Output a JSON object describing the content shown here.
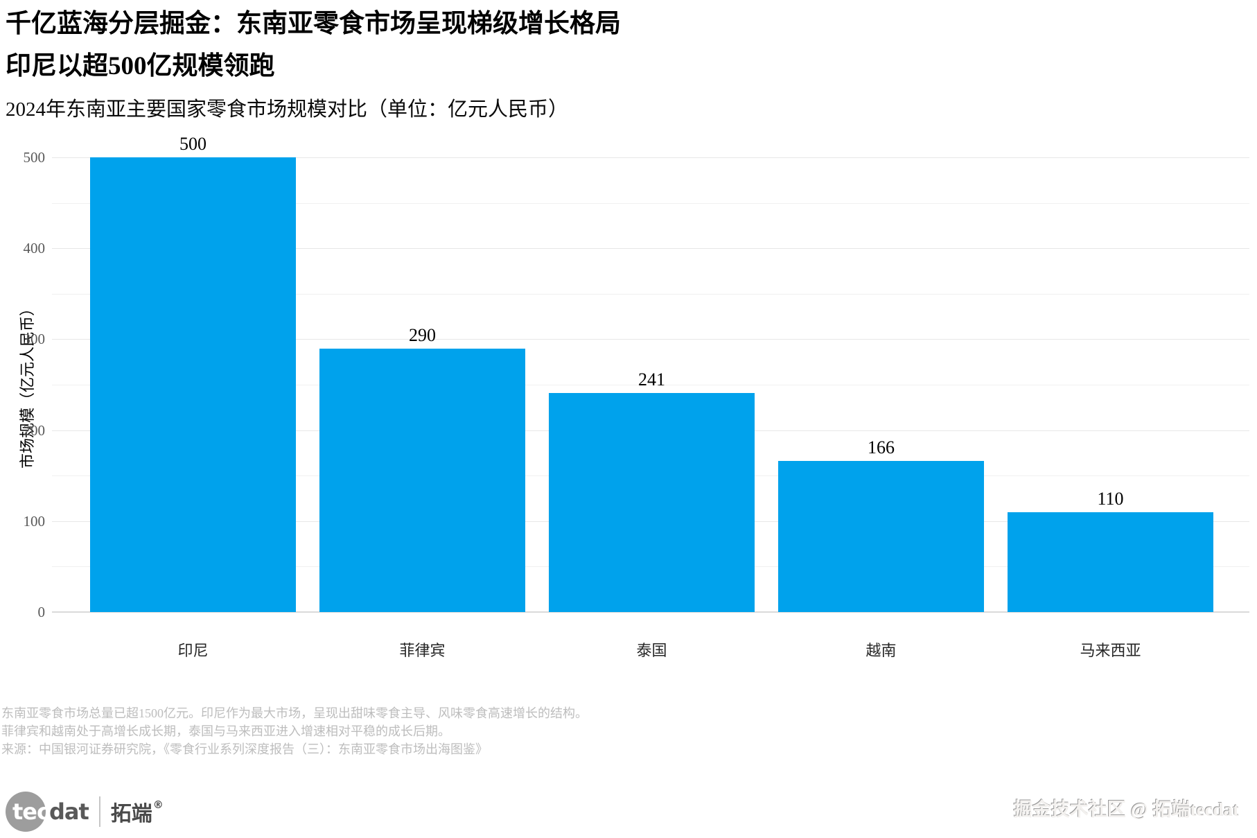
{
  "header": {
    "title_line1": "千亿蓝海分层掘金：东南亚零食市场呈现梯级增长格局",
    "title_line2": "印尼以超500亿规模领跑",
    "subtitle": "2024年东南亚主要国家零食市场规模对比（单位：亿元人民币）"
  },
  "chart_data": {
    "type": "bar",
    "title": "2024年东南亚主要国家零食市场规模对比（单位：亿元人民币）",
    "categories": [
      "印尼",
      "菲律宾",
      "泰国",
      "越南",
      "马来西亚"
    ],
    "values": [
      500,
      290,
      241,
      166,
      110
    ],
    "xlabel": "",
    "ylabel": "市场规模（亿元人民币）",
    "ylim": [
      0,
      500
    ],
    "yticks": [
      0,
      100,
      200,
      300,
      400,
      500
    ],
    "ytick_minor_step": 50,
    "grid": true,
    "legend": false,
    "bar_color": "#00A2EC",
    "value_label_color": "#000000"
  },
  "footnotes": {
    "line1": "东南亚零食市场总量已超1500亿元。印尼作为最大市场，呈现出甜味零食主导、风味零食高速增长的结构。",
    "line2": "菲律宾和越南处于高增长成长期，泰国与马来西亚进入增速相对平稳的成长后期。",
    "line3": "来源：中国银河证券研究院，《零食行业系列深度报告（三）：东南亚零食市场出海图鉴》"
  },
  "footer": {
    "logo_tec": "tec",
    "logo_dat": "dat",
    "logo_brand": "拓端",
    "logo_reg": "®",
    "watermark": "掘金技术社区 @ 拓端tecdat"
  }
}
